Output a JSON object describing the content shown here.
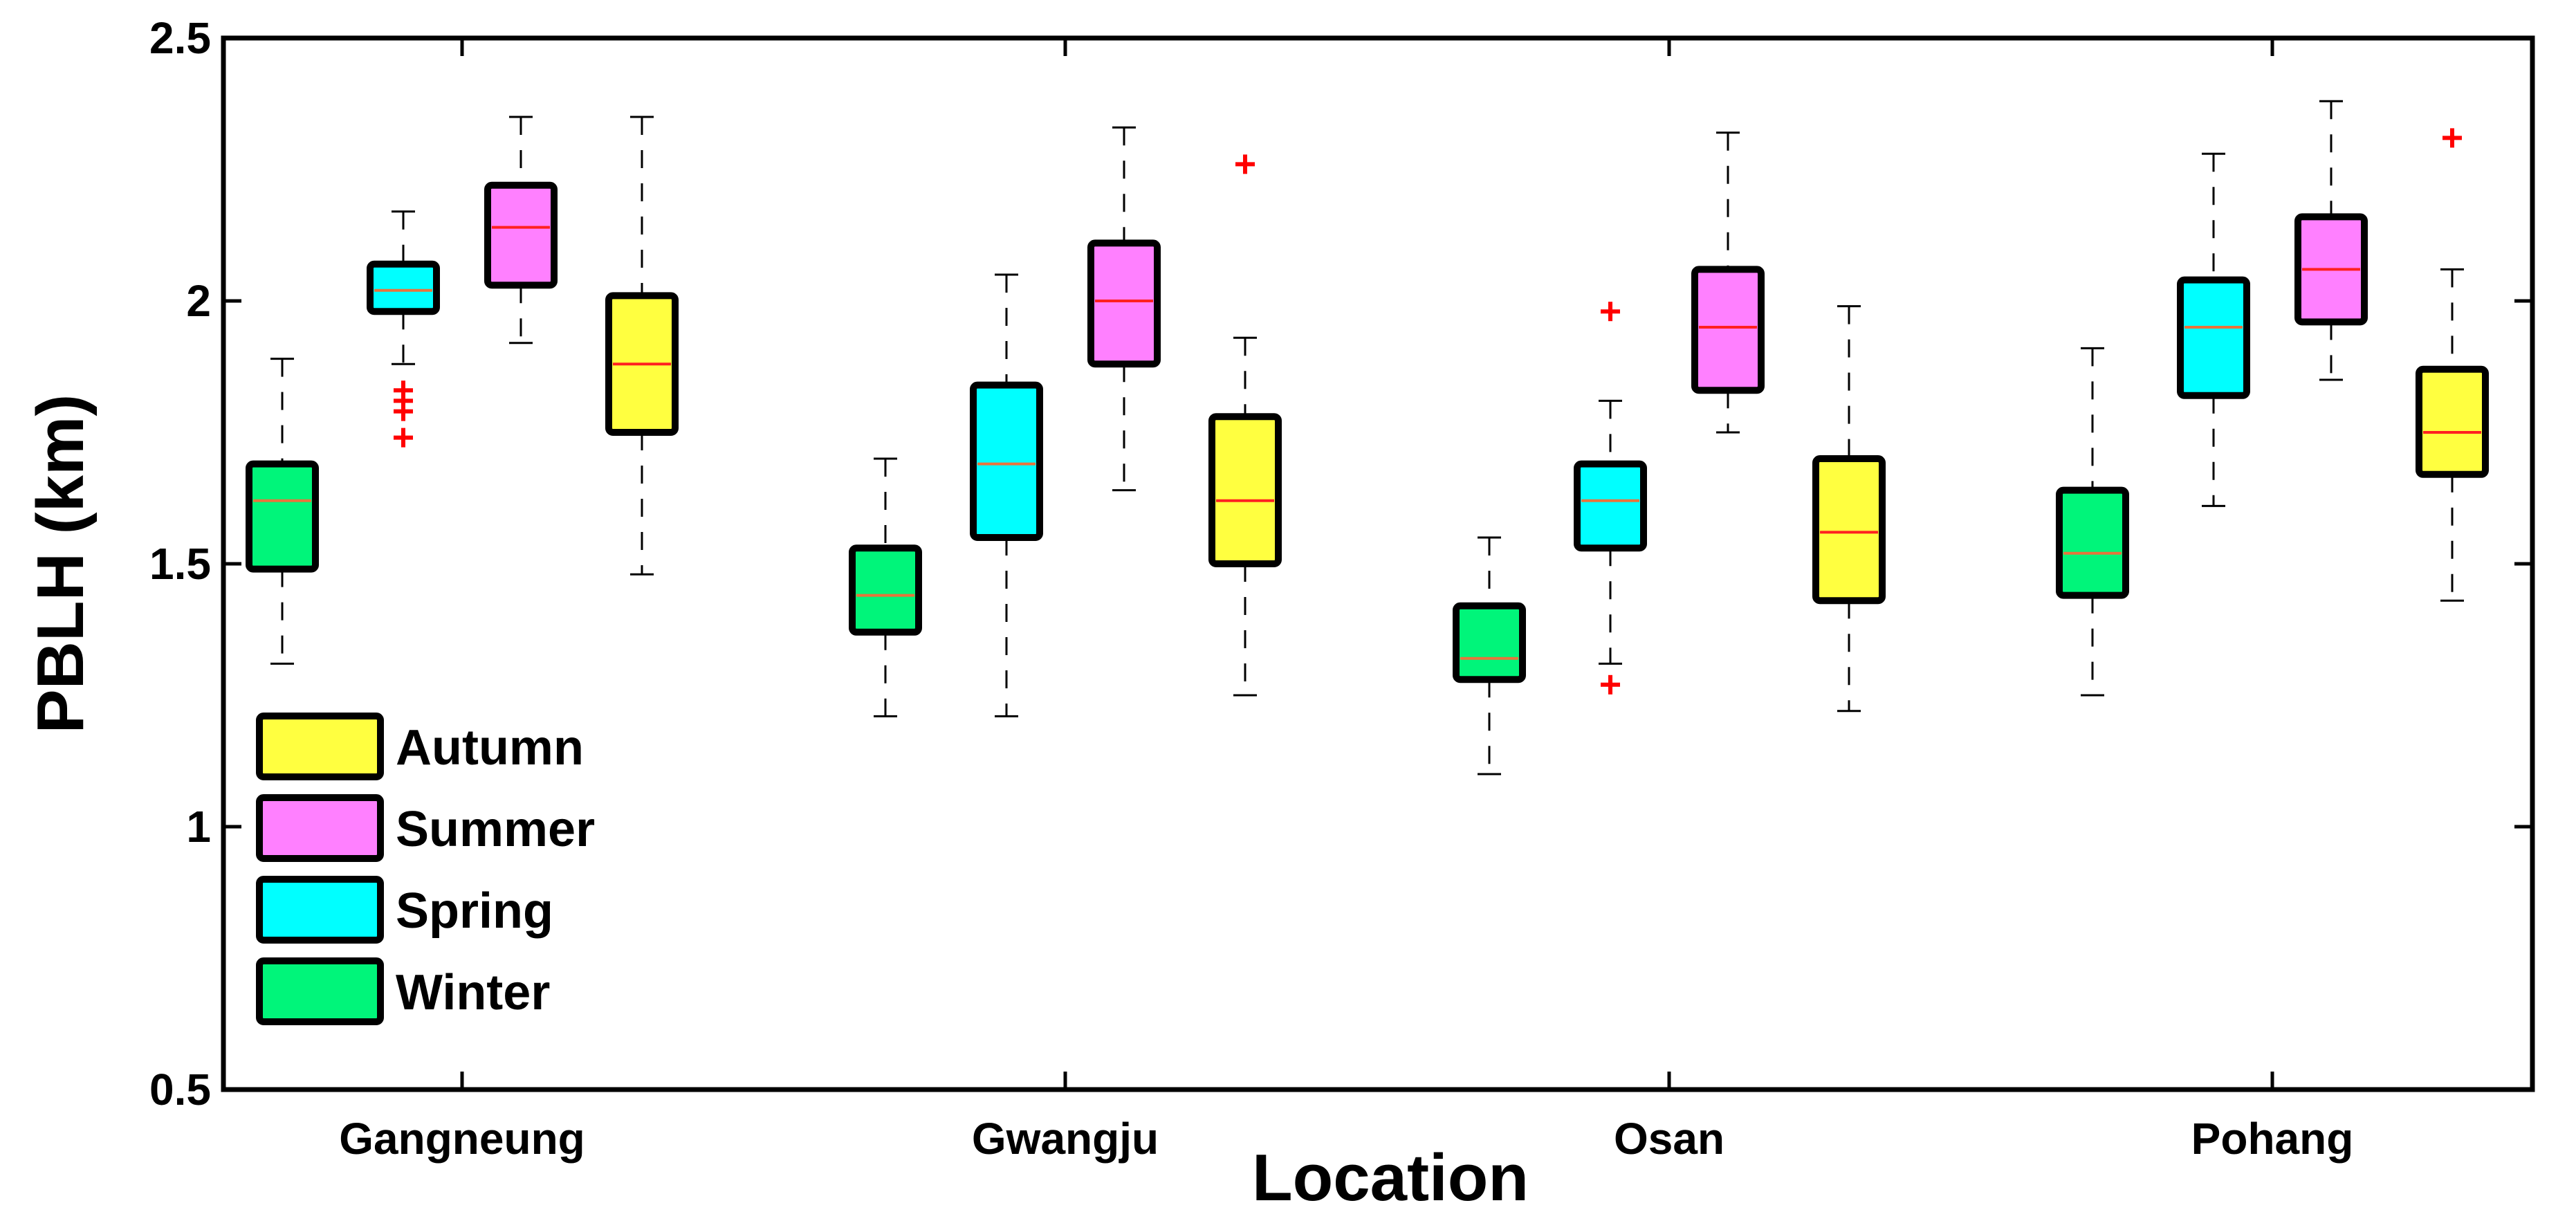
{
  "chart_data": {
    "type": "box",
    "xlabel": "Location",
    "ylabel": "PBLH (km)",
    "ylim": [
      0.5,
      2.5
    ],
    "yticks": [
      0.5,
      1,
      1.5,
      2,
      2.5
    ],
    "ytick_labels": [
      "0.5",
      "1",
      "1.5",
      "2",
      "2.5"
    ],
    "categories": [
      "Gangneung",
      "Gwangju",
      "Osan",
      "Pohang"
    ],
    "grid": false,
    "legend_position": "lower-left",
    "legend_order": [
      "Autumn",
      "Summer",
      "Spring",
      "Winter"
    ],
    "series": [
      {
        "name": "Winter",
        "color": "#00f57a",
        "median_color": "#e8743b",
        "boxes": [
          {
            "category": "Gangneung",
            "whisker_low": 1.31,
            "q1": 1.49,
            "median": 1.62,
            "q3": 1.69,
            "whisker_high": 1.89,
            "outliers": []
          },
          {
            "category": "Gwangju",
            "whisker_low": 1.21,
            "q1": 1.37,
            "median": 1.44,
            "q3": 1.53,
            "whisker_high": 1.7,
            "outliers": []
          },
          {
            "category": "Osan",
            "whisker_low": 1.1,
            "q1": 1.28,
            "median": 1.32,
            "q3": 1.42,
            "whisker_high": 1.55,
            "outliers": []
          },
          {
            "category": "Pohang",
            "whisker_low": 1.25,
            "q1": 1.44,
            "median": 1.52,
            "q3": 1.64,
            "whisker_high": 1.91,
            "outliers": []
          }
        ]
      },
      {
        "name": "Spring",
        "color": "#00ffff",
        "median_color": "#e8743b",
        "boxes": [
          {
            "category": "Gangneung",
            "whisker_low": 1.88,
            "q1": 1.98,
            "median": 2.02,
            "q3": 2.07,
            "whisker_high": 2.17,
            "outliers": [
              1.74,
              1.79,
              1.81,
              1.83
            ]
          },
          {
            "category": "Gwangju",
            "whisker_low": 1.21,
            "q1": 1.55,
            "median": 1.69,
            "q3": 1.84,
            "whisker_high": 2.05,
            "outliers": []
          },
          {
            "category": "Osan",
            "whisker_low": 1.31,
            "q1": 1.53,
            "median": 1.62,
            "q3": 1.69,
            "whisker_high": 1.81,
            "outliers": [
              1.27,
              1.98
            ]
          },
          {
            "category": "Pohang",
            "whisker_low": 1.61,
            "q1": 1.82,
            "median": 1.95,
            "q3": 2.04,
            "whisker_high": 2.28,
            "outliers": []
          }
        ]
      },
      {
        "name": "Summer",
        "color": "#ff80ff",
        "median_color": "#ff2020",
        "boxes": [
          {
            "category": "Gangneung",
            "whisker_low": 1.92,
            "q1": 2.03,
            "median": 2.14,
            "q3": 2.22,
            "whisker_high": 2.35,
            "outliers": []
          },
          {
            "category": "Gwangju",
            "whisker_low": 1.64,
            "q1": 1.88,
            "median": 2.0,
            "q3": 2.11,
            "whisker_high": 2.33,
            "outliers": []
          },
          {
            "category": "Osan",
            "whisker_low": 1.75,
            "q1": 1.83,
            "median": 1.95,
            "q3": 2.06,
            "whisker_high": 2.32,
            "outliers": []
          },
          {
            "category": "Pohang",
            "whisker_low": 1.85,
            "q1": 1.96,
            "median": 2.06,
            "q3": 2.16,
            "whisker_high": 2.38,
            "outliers": []
          }
        ]
      },
      {
        "name": "Autumn",
        "color": "#ffff40",
        "median_color": "#ff2020",
        "boxes": [
          {
            "category": "Gangneung",
            "whisker_low": 1.48,
            "q1": 1.75,
            "median": 1.88,
            "q3": 2.01,
            "whisker_high": 2.35,
            "outliers": []
          },
          {
            "category": "Gwangju",
            "whisker_low": 1.25,
            "q1": 1.5,
            "median": 1.62,
            "q3": 1.78,
            "whisker_high": 1.93,
            "outliers": [
              2.26
            ]
          },
          {
            "category": "Osan",
            "whisker_low": 1.22,
            "q1": 1.43,
            "median": 1.56,
            "q3": 1.7,
            "whisker_high": 1.99,
            "outliers": []
          },
          {
            "category": "Pohang",
            "whisker_low": 1.43,
            "q1": 1.67,
            "median": 1.75,
            "q3": 1.87,
            "whisker_high": 2.06,
            "outliers": [
              2.31
            ]
          }
        ]
      }
    ]
  }
}
